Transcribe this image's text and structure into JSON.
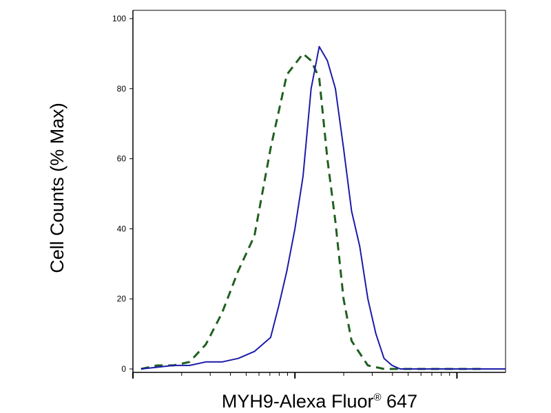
{
  "chart_data": {
    "type": "line",
    "title": "",
    "xlabel": "MYH9-Alexa Fluor",
    "xlabel_superscript": "®",
    "xlabel_suffix": " 647",
    "ylabel": "Cell Counts (% Max)",
    "x_scale": "log",
    "ylim": [
      0,
      100
    ],
    "yticks": [
      {
        "value": 0,
        "label": "0"
      },
      {
        "value": 20,
        "label": "20"
      },
      {
        "value": 40,
        "label": "40"
      },
      {
        "value": 60,
        "label": "60"
      },
      {
        "value": 80,
        "label": "80"
      },
      {
        "value": 100,
        "label": "100"
      }
    ],
    "xlim_decades": [
      0,
      2.3
    ],
    "grid": false,
    "series": [
      {
        "color": "#1f5f1f",
        "style": "dashed",
        "x": [
          0.05,
          0.15,
          0.25,
          0.35,
          0.45,
          0.55,
          0.65,
          0.75,
          0.85,
          0.95,
          1.05,
          1.1,
          1.15,
          1.2,
          1.25,
          1.3,
          1.35,
          1.45,
          1.55,
          1.65,
          1.75,
          1.85,
          1.95,
          2.05,
          2.15
        ],
        "y": [
          0,
          1,
          1,
          2,
          7,
          16,
          28,
          38,
          63,
          84,
          90,
          88,
          83,
          60,
          42,
          20,
          8,
          1,
          0,
          0,
          0,
          0,
          0,
          0,
          0
        ]
      },
      {
        "color": "#1a1aaa",
        "style": "solid",
        "x": [
          0.05,
          0.15,
          0.25,
          0.35,
          0.45,
          0.55,
          0.65,
          0.75,
          0.85,
          0.9,
          0.95,
          1.0,
          1.05,
          1.1,
          1.15,
          1.2,
          1.25,
          1.3,
          1.35,
          1.4,
          1.45,
          1.5,
          1.55,
          1.6,
          1.65,
          1.7,
          1.75,
          1.8,
          1.9,
          2.0,
          2.1,
          2.2,
          2.3
        ],
        "y": [
          0,
          0.5,
          1,
          1,
          2,
          2,
          3,
          5,
          9,
          18,
          28,
          40,
          55,
          80,
          92,
          88,
          80,
          63,
          45,
          35,
          20,
          10,
          3,
          1,
          0,
          0,
          0,
          0,
          0,
          0,
          0,
          0,
          0
        ]
      }
    ]
  }
}
